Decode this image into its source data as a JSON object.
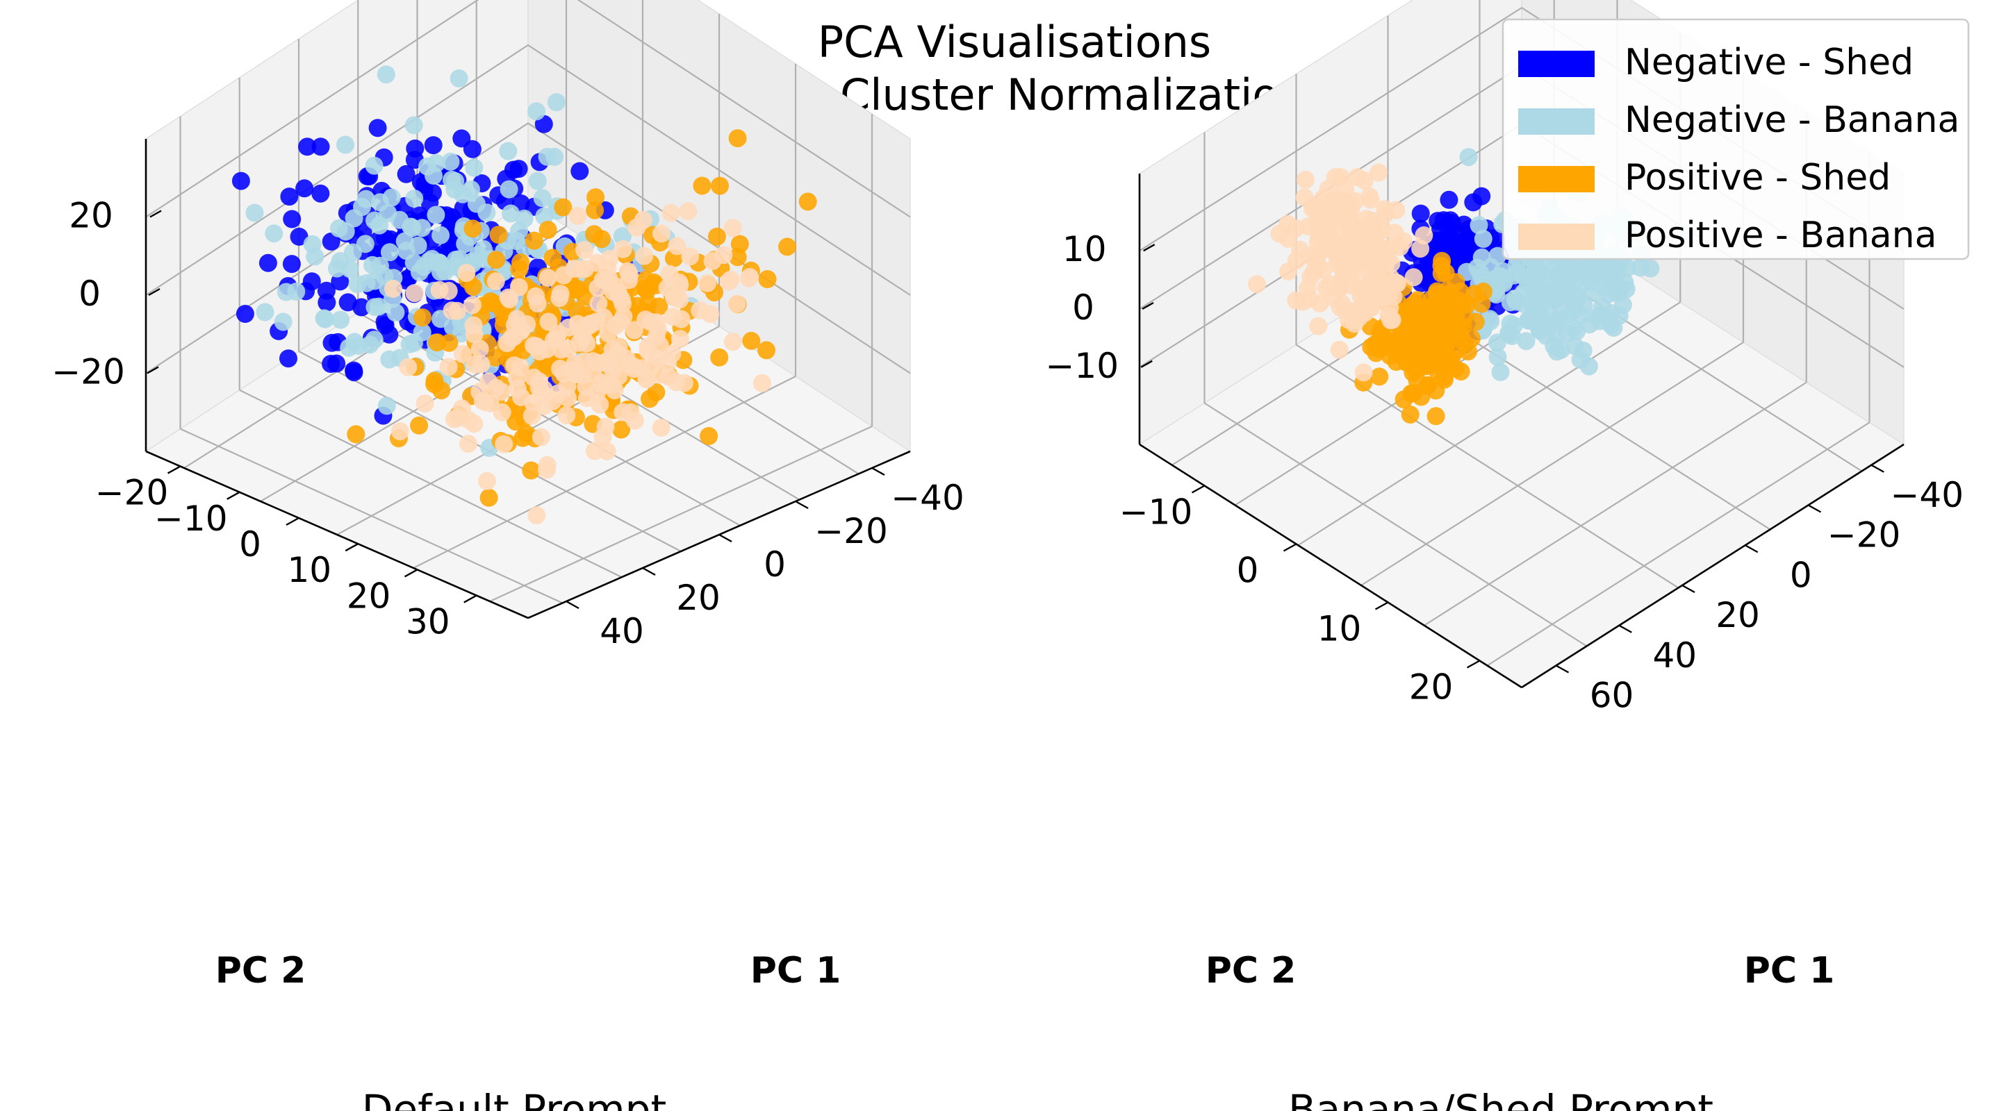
{
  "title_line1": "PCA Visualisations",
  "title_line2": "After Cluster Normalization",
  "legend": [
    {
      "label": "Negative - Shed",
      "color": "#0000ff"
    },
    {
      "label": "Negative - Banana",
      "color": "#add8e6"
    },
    {
      "label": "Positive - Shed",
      "color": "#ffa500"
    },
    {
      "label": "Positive - Banana",
      "color": "#ffdab9"
    }
  ],
  "chart_data": [
    {
      "type": "scatter",
      "title": "Default Prompt",
      "x_axis_label": "PC 1",
      "y_axis_label": "PC 2",
      "z_axis_label": "",
      "x_ticks": [
        "−40",
        "−20",
        "0",
        "20",
        "40"
      ],
      "y_ticks": [
        "−20",
        "−10",
        "0",
        "10",
        "20",
        "30"
      ],
      "z_ticks": [
        "20",
        "0",
        "−20"
      ],
      "xlim": [
        -45,
        45
      ],
      "ylim": [
        -25,
        32
      ],
      "zlim": [
        -30,
        35
      ],
      "grid": true,
      "view": "3d-isometric",
      "series": [
        {
          "name": "Negative - Shed",
          "color": "#0000ff",
          "center": [
            -8,
            -5,
            5
          ],
          "spread": [
            13,
            7,
            9
          ],
          "count": 240
        },
        {
          "name": "Negative - Banana",
          "color": "#add8e6",
          "center": [
            -5,
            -4,
            4
          ],
          "spread": [
            15,
            8,
            10
          ],
          "count": 200
        },
        {
          "name": "Positive - Shed",
          "color": "#ffa500",
          "center": [
            15,
            2,
            -6
          ],
          "spread": [
            10,
            9,
            8
          ],
          "count": 250
        },
        {
          "name": "Positive - Banana",
          "color": "#ffdab9",
          "center": [
            16,
            2,
            -8
          ],
          "spread": [
            11,
            9,
            9
          ],
          "count": 210
        }
      ]
    },
    {
      "type": "scatter",
      "title": "Banana/Shed Prompt",
      "x_axis_label": "PC 1",
      "y_axis_label": "PC 2",
      "z_axis_label": "",
      "x_ticks": [
        "−40",
        "−20",
        "0",
        "20",
        "40",
        "60"
      ],
      "y_ticks": [
        "−10",
        "0",
        "10",
        "20"
      ],
      "z_ticks": [
        "10",
        "0",
        "−10"
      ],
      "xlim": [
        -50,
        70
      ],
      "ylim": [
        -18,
        26
      ],
      "zlim": [
        -14,
        20
      ],
      "grid": true,
      "view": "3d-isometric",
      "series": [
        {
          "name": "Negative - Shed",
          "color": "#0000ff",
          "center": [
            -8,
            3,
            4
          ],
          "spread": [
            5,
            2,
            3
          ],
          "count": 200
        },
        {
          "name": "Negative - Banana",
          "color": "#add8e6",
          "center": [
            5,
            10,
            1
          ],
          "spread": [
            9,
            4,
            3
          ],
          "count": 230
        },
        {
          "name": "Positive - Shed",
          "color": "#ffa500",
          "center": [
            -4,
            -2,
            0
          ],
          "spread": [
            4,
            2,
            3
          ],
          "count": 220
        },
        {
          "name": "Positive - Banana",
          "color": "#ffdab9",
          "center": [
            -22,
            -4,
            7
          ],
          "spread": [
            7,
            2,
            4
          ],
          "count": 200
        }
      ]
    }
  ]
}
